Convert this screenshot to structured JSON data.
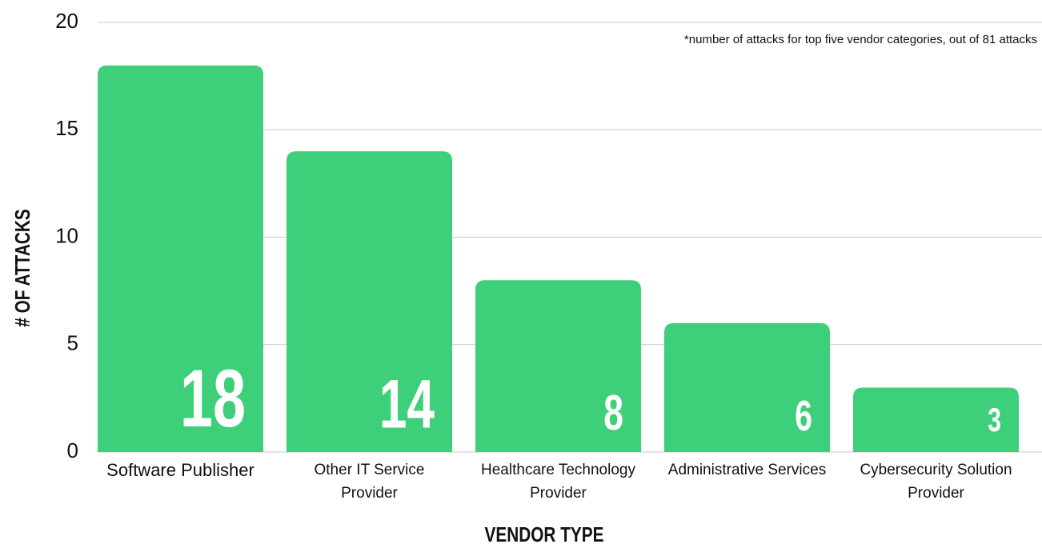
{
  "chart_data": {
    "type": "bar",
    "note": "*number of attacks for top five vendor categories, out of 81 attacks",
    "x_label": "VENDOR TYPE",
    "y_label": "# OF ATTACKS",
    "categories": [
      "Software Publisher",
      "Other IT Service Provider",
      "Healthcare Technology Provider",
      "Administrative Services",
      "Cybersecurity Solution Provider"
    ],
    "values": [
      18,
      14,
      8,
      6,
      3
    ],
    "color": "#3ecf7a",
    "ylim": [
      0,
      20
    ],
    "yticks": [
      0,
      5,
      10,
      15,
      20
    ],
    "grid": true
  }
}
